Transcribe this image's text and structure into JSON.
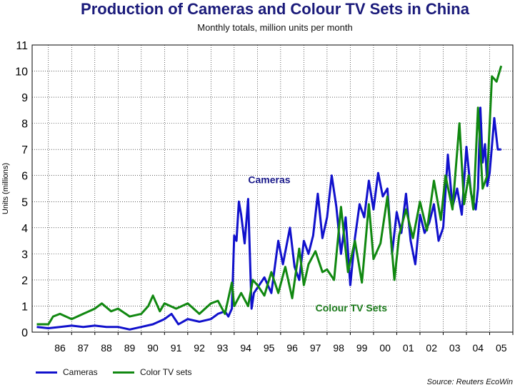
{
  "chart_data": {
    "type": "line",
    "title": "Production of Cameras and Colour TV Sets in China",
    "subtitle": "Monthly totals, million units per month",
    "ylabel": "Units (millions)",
    "xlabel": "",
    "ylim": [
      0,
      11
    ],
    "xlim": [
      1985.3,
      2006.0
    ],
    "yticks": [
      "0",
      "1",
      "2",
      "3",
      "4",
      "5",
      "6",
      "7",
      "8",
      "9",
      "10",
      "11"
    ],
    "xticks": [
      "86",
      "87",
      "88",
      "89",
      "90",
      "91",
      "92",
      "93",
      "94",
      "95",
      "96",
      "97",
      "98",
      "99",
      "00",
      "01",
      "02",
      "03",
      "04",
      "05"
    ],
    "grid": true,
    "annotations": [
      {
        "text": "Cameras",
        "color": "#1a1a8a",
        "x": 1994.6,
        "y": 5.7
      },
      {
        "text": "Colour TV Sets",
        "color": "#1a7a1a",
        "x": 1997.5,
        "y": 0.8
      }
    ],
    "source": "Source: Reuters EcoWin",
    "series": [
      {
        "name": "Cameras",
        "color": "#1111cc",
        "x": [
          1985.5,
          1986,
          1986.5,
          1987,
          1987.5,
          1988,
          1988.5,
          1989,
          1989.5,
          1990,
          1990.5,
          1991,
          1991.3,
          1991.6,
          1992,
          1992.5,
          1993,
          1993.3,
          1993.6,
          1993.75,
          1993.9,
          1994.0,
          1994.1,
          1994.2,
          1994.3,
          1994.45,
          1994.6,
          1994.75,
          1994.85,
          1995.0,
          1995.3,
          1995.6,
          1995.9,
          1996.1,
          1996.4,
          1996.6,
          1996.8,
          1997.0,
          1997.2,
          1997.4,
          1997.6,
          1997.8,
          1998.0,
          1998.2,
          1998.4,
          1998.6,
          1998.8,
          1999.0,
          1999.2,
          1999.4,
          1999.6,
          1999.8,
          2000.0,
          2000.2,
          2000.4,
          2000.6,
          2000.8,
          2001.0,
          2001.2,
          2001.4,
          2001.6,
          2001.8,
          2002.0,
          2002.2,
          2002.4,
          2002.6,
          2002.8,
          2003.0,
          2003.2,
          2003.4,
          2003.6,
          2003.8,
          2004.0,
          2004.2,
          2004.4,
          2004.5,
          2004.6,
          2004.7,
          2004.8,
          2004.9,
          2005.0,
          2005.2,
          2005.35,
          2005.5
        ],
        "values": [
          0.2,
          0.15,
          0.2,
          0.25,
          0.2,
          0.25,
          0.2,
          0.2,
          0.1,
          0.2,
          0.3,
          0.5,
          0.7,
          0.3,
          0.5,
          0.4,
          0.5,
          0.7,
          0.8,
          0.6,
          0.9,
          3.7,
          3.5,
          5.0,
          4.5,
          3.4,
          5.1,
          0.9,
          1.5,
          1.7,
          2.1,
          1.5,
          3.5,
          2.6,
          4.0,
          2.5,
          2.0,
          3.5,
          3.0,
          3.7,
          5.3,
          3.6,
          4.4,
          6.0,
          4.8,
          3.0,
          4.4,
          1.8,
          3.6,
          4.9,
          4.4,
          5.8,
          4.7,
          6.1,
          5.2,
          5.5,
          3.0,
          4.6,
          3.8,
          5.3,
          3.5,
          2.6,
          4.5,
          3.8,
          4.2,
          4.9,
          3.5,
          4.0,
          6.8,
          4.8,
          5.5,
          4.5,
          7.1,
          5.3,
          4.7,
          5.5,
          8.6,
          6.5,
          7.2,
          5.6,
          6.1,
          8.2,
          7.0,
          7.0
        ]
      },
      {
        "name": "Color TV sets",
        "color": "#118811",
        "x": [
          1985.5,
          1986,
          1986.2,
          1986.5,
          1987,
          1987.5,
          1988,
          1988.3,
          1988.7,
          1989,
          1989.5,
          1990,
          1990.3,
          1990.5,
          1990.8,
          1991,
          1991.5,
          1992,
          1992.5,
          1993,
          1993.3,
          1993.6,
          1993.9,
          1994.0,
          1994.3,
          1994.6,
          1994.8,
          1995.0,
          1995.3,
          1995.6,
          1995.9,
          1996.2,
          1996.5,
          1996.8,
          1997.0,
          1997.2,
          1997.5,
          1997.8,
          1998.0,
          1998.3,
          1998.6,
          1998.9,
          1999.2,
          1999.5,
          1999.8,
          2000.0,
          2000.3,
          2000.6,
          2000.9,
          2001.1,
          2001.4,
          2001.7,
          2002.0,
          2002.3,
          2002.6,
          2002.9,
          2003.1,
          2003.4,
          2003.7,
          2003.9,
          2004.1,
          2004.3,
          2004.5,
          2004.7,
          2004.9,
          2005.1,
          2005.3,
          2005.5
        ],
        "values": [
          0.3,
          0.3,
          0.6,
          0.7,
          0.5,
          0.7,
          0.9,
          1.1,
          0.8,
          0.9,
          0.6,
          0.7,
          1.0,
          1.4,
          0.8,
          1.1,
          0.9,
          1.1,
          0.7,
          1.1,
          1.2,
          0.7,
          1.9,
          1.0,
          1.5,
          1.0,
          2.0,
          1.8,
          1.4,
          2.3,
          1.5,
          2.5,
          1.3,
          3.2,
          1.8,
          2.6,
          3.1,
          2.3,
          2.4,
          2.0,
          4.8,
          2.3,
          3.5,
          1.9,
          4.9,
          2.8,
          3.4,
          5.2,
          2.0,
          3.7,
          4.7,
          3.6,
          5.0,
          3.9,
          5.8,
          4.3,
          6.0,
          4.7,
          8.0,
          4.9,
          6.0,
          4.7,
          8.6,
          5.5,
          6.0,
          9.8,
          9.6,
          10.2
        ]
      }
    ]
  },
  "legend": {
    "cameras_label": "Cameras",
    "tv_label": "Color TV sets"
  }
}
